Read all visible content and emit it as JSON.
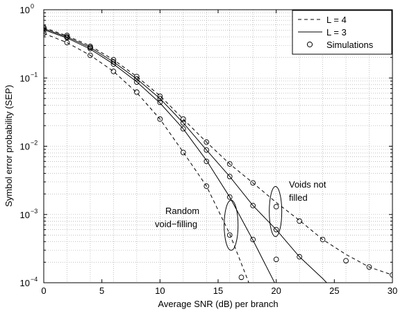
{
  "chart_data": {
    "type": "line",
    "xlabel": "Average SNR (dB) per branch",
    "ylabel": "Symbol error probability (SEP)",
    "xlim": [
      0,
      30
    ],
    "ylim": [
      0.0001,
      1
    ],
    "y_scale": "log",
    "grid": true,
    "x_ticks": [
      0,
      5,
      10,
      15,
      20,
      25,
      30
    ],
    "y_ticks": [
      {
        "value": 0.0001,
        "base": "10",
        "exp": "−4"
      },
      {
        "value": 0.001,
        "base": "10",
        "exp": "−3"
      },
      {
        "value": 0.01,
        "base": "10",
        "exp": "−2"
      },
      {
        "value": 0.1,
        "base": "10",
        "exp": "−1"
      },
      {
        "value": 1,
        "base": "10",
        "exp": "0"
      }
    ],
    "legend": {
      "placement": "top-right",
      "entries": [
        {
          "label": "L = 4",
          "style": "dashed"
        },
        {
          "label": "L = 3",
          "style": "solid"
        },
        {
          "label": "Simulations",
          "style": "circle"
        }
      ]
    },
    "annotations": [
      {
        "lines": [
          "Random",
          "void−filling"
        ],
        "ellipse_center": [
          16,
          0.00055
        ]
      },
      {
        "lines": [
          "Voids not",
          "filled"
        ],
        "ellipse_center": [
          20,
          0.0013
        ]
      }
    ],
    "series": [
      {
        "group": "Random void-filling",
        "style": "dashed",
        "x": [
          0,
          2,
          4,
          6,
          8,
          10,
          12,
          14,
          16,
          18
        ],
        "y": [
          0.45,
          0.33,
          0.215,
          0.125,
          0.061,
          0.025,
          0.0082,
          0.0026,
          0.00052,
          7e-05
        ]
      },
      {
        "group": "Random void-filling",
        "style": "solid",
        "x": [
          0,
          2,
          4,
          6,
          8,
          10,
          12,
          14,
          16,
          18,
          20,
          21.6
        ],
        "y": [
          0.51,
          0.385,
          0.265,
          0.16,
          0.088,
          0.043,
          0.018,
          0.0062,
          0.0018,
          0.00042,
          9e-05,
          3e-05
        ]
      },
      {
        "group": "Voids not filled",
        "style": "dashed",
        "x": [
          0,
          2,
          4,
          6,
          8,
          10,
          12,
          14,
          16,
          18,
          20,
          22,
          24,
          26,
          28,
          30
        ],
        "y": [
          0.55,
          0.415,
          0.295,
          0.185,
          0.105,
          0.055,
          0.025,
          0.0115,
          0.0055,
          0.0029,
          0.0015,
          0.00082,
          0.00043,
          0.00026,
          0.00017,
          0.00013
        ]
      },
      {
        "group": "Voids not filled",
        "style": "solid",
        "x": [
          0,
          2,
          4,
          6,
          8,
          10,
          12,
          14,
          16,
          18,
          20,
          22,
          24,
          24.6
        ],
        "y": [
          0.53,
          0.4,
          0.28,
          0.172,
          0.097,
          0.05,
          0.022,
          0.0088,
          0.0036,
          0.00135,
          0.0006,
          0.00024,
          0.000115,
          9e-05
        ]
      }
    ],
    "simulations": [
      {
        "x": [
          0,
          2,
          4,
          6,
          8,
          10,
          12,
          14,
          16,
          17
        ],
        "y": [
          0.45,
          0.33,
          0.215,
          0.125,
          0.062,
          0.025,
          0.0081,
          0.0026,
          0.0005,
          0.00012
        ]
      },
      {
        "x": [
          0,
          2,
          4,
          6,
          8,
          10,
          12,
          14,
          16,
          18,
          20
        ],
        "y": [
          0.5,
          0.39,
          0.27,
          0.16,
          0.087,
          0.044,
          0.018,
          0.006,
          0.0018,
          0.00043,
          0.00022
        ]
      },
      {
        "x": [
          0,
          2,
          4,
          6,
          8,
          10,
          12,
          14,
          16,
          18,
          20,
          22,
          24,
          26,
          28,
          30
        ],
        "y": [
          0.55,
          0.42,
          0.29,
          0.185,
          0.105,
          0.054,
          0.025,
          0.0115,
          0.0055,
          0.0029,
          0.0013,
          0.0008,
          0.00043,
          0.00021,
          0.00017,
          0.00013
        ]
      },
      {
        "x": [
          0,
          2,
          4,
          6,
          8,
          10,
          12,
          14,
          16,
          18,
          20,
          22
        ],
        "y": [
          0.53,
          0.4,
          0.28,
          0.172,
          0.097,
          0.05,
          0.022,
          0.0088,
          0.0036,
          0.00135,
          0.0006,
          0.00024
        ]
      }
    ]
  }
}
